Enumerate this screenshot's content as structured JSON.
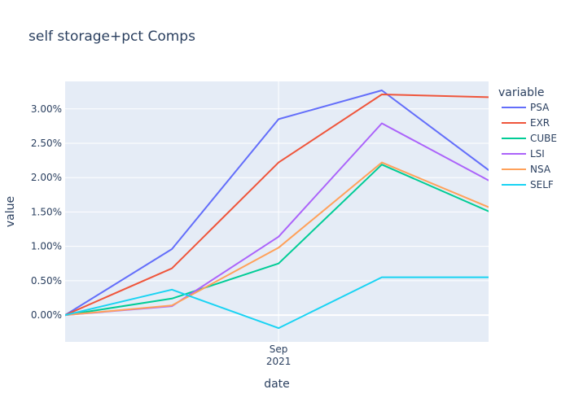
{
  "chart_data": {
    "type": "line",
    "title": "self storage+pct Comps",
    "xlabel": "date",
    "ylabel": "value",
    "x": [
      "2021-06-30",
      "2021-07-31",
      "2021-08-31",
      "2021-09-30",
      "2021-10-31"
    ],
    "x_tick_labels": [
      {
        "value": "2021-08-31",
        "line1": "Sep",
        "line2": "2021"
      }
    ],
    "ylim": [
      -0.0039,
      0.034
    ],
    "y_ticks": [
      0,
      0.005,
      0.01,
      0.015,
      0.02,
      0.025,
      0.03
    ],
    "y_tick_labels": [
      "0.00%",
      "0.50%",
      "1.00%",
      "1.50%",
      "2.00%",
      "2.50%",
      "3.00%"
    ],
    "legend_title": "variable",
    "legend_position": "right",
    "grid": true,
    "series": [
      {
        "name": "PSA",
        "color": "#636efa",
        "values": [
          0,
          0.0096,
          0.0285,
          0.0327,
          0.0211
        ]
      },
      {
        "name": "EXR",
        "color": "#ef553b",
        "values": [
          0,
          0.0068,
          0.0222,
          0.0321,
          0.0317
        ]
      },
      {
        "name": "CUBE",
        "color": "#00cc96",
        "values": [
          0,
          0.0024,
          0.0075,
          0.0219,
          0.0151
        ]
      },
      {
        "name": "LSI",
        "color": "#ab63fa",
        "values": [
          0,
          0.0013,
          0.0114,
          0.0279,
          0.0196
        ]
      },
      {
        "name": "NSA",
        "color": "#ffa15a",
        "values": [
          0,
          0.0014,
          0.0098,
          0.0222,
          0.0157
        ]
      },
      {
        "name": "SELF",
        "color": "#19d3f3",
        "values": [
          0,
          0.0037,
          -0.0019,
          0.0055,
          0.0055
        ]
      }
    ]
  }
}
